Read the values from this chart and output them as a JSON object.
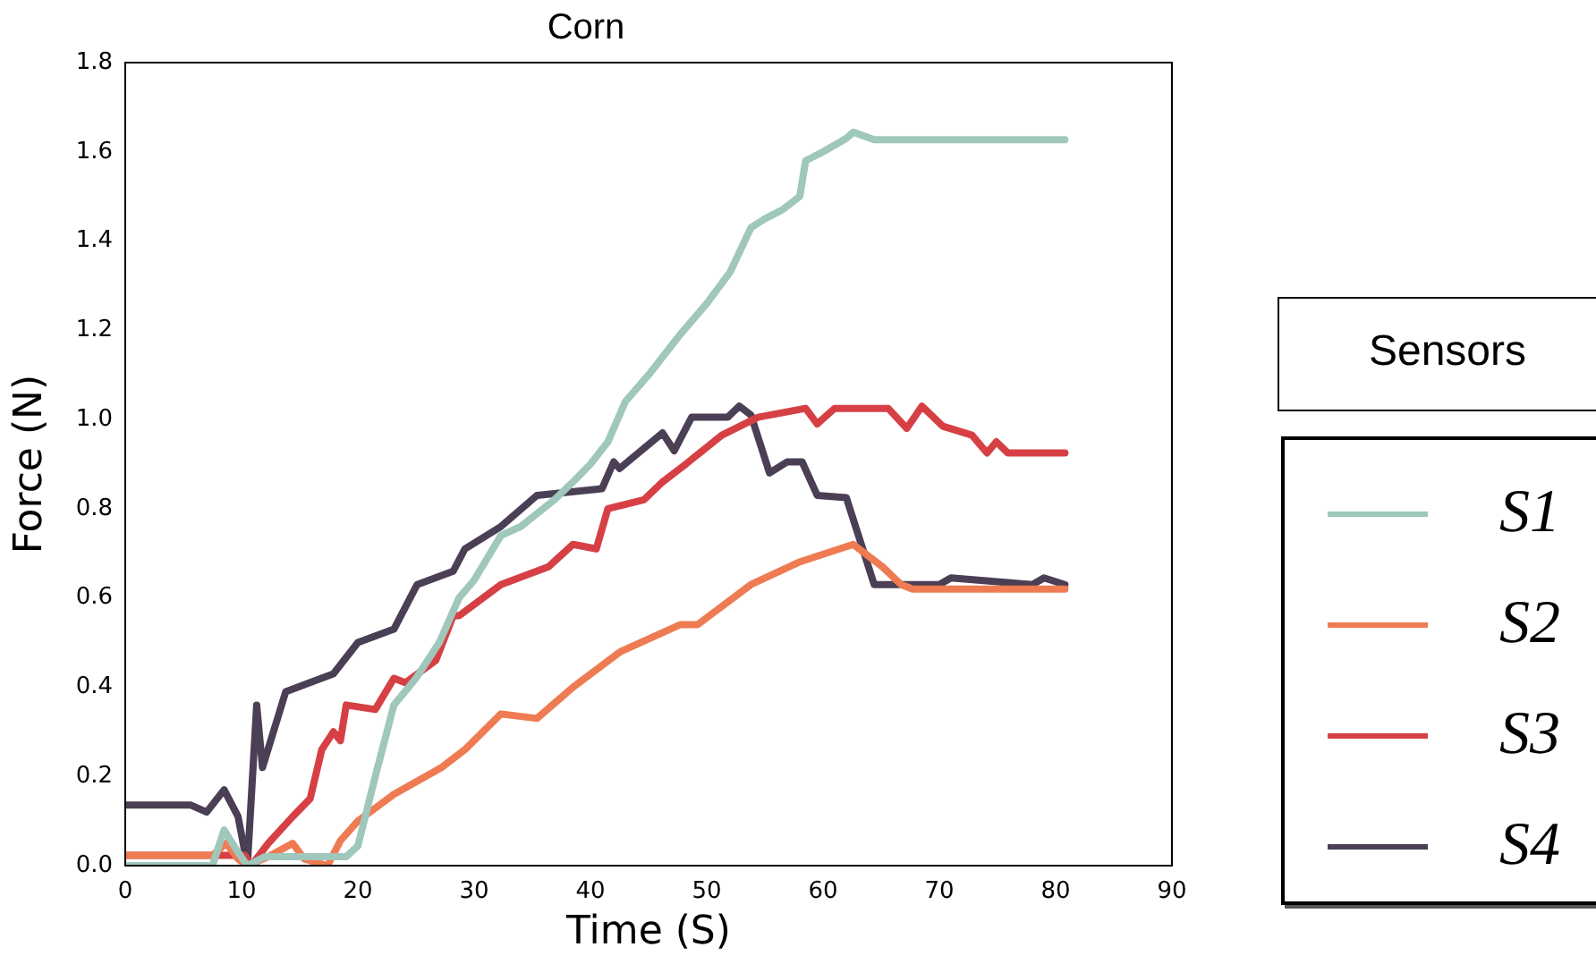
{
  "chart_data": {
    "type": "line",
    "title": "Corn",
    "xlabel": "Time (S)",
    "ylabel": "Force (N)",
    "legend_title": "Sensors",
    "legend": "right",
    "grid": false,
    "marker": "none",
    "line_style": "solid",
    "xlim": [
      0,
      90
    ],
    "xticks": [
      0,
      10,
      20,
      30,
      40,
      50,
      60,
      70,
      80,
      90
    ],
    "ylim": [
      0,
      1.8
    ],
    "yticks": [
      {
        "value": 0,
        "label": "0.0"
      },
      {
        "value": 0.2,
        "label": "0.2"
      },
      {
        "value": 0.4,
        "label": "0.4"
      },
      {
        "value": 0.6,
        "label": "0.6"
      },
      {
        "value": 0.8,
        "label": "0.8"
      },
      {
        "value": 1,
        "label": "1.0"
      },
      {
        "value": 1.2,
        "label": "1.2"
      },
      {
        "value": 1.4,
        "label": "1.4"
      },
      {
        "value": 1.6,
        "label": "1.6"
      },
      {
        "value": 1.8,
        "label": "1.8"
      }
    ],
    "series": [
      {
        "name": "S1",
        "color": "#9fc7bb",
        "x": [
          0,
          7.5,
          8.5,
          9.7,
          10.5,
          12,
          19,
          20,
          21.5,
          23.1,
          25,
          27,
          28.7,
          30,
          32.3,
          34,
          36.9,
          38.5,
          40,
          41.5,
          43,
          45,
          46.2,
          47.7,
          50,
          52,
          53.8,
          55,
          56.5,
          58,
          58.5,
          60,
          62,
          62.6,
          64.4,
          80.8
        ],
        "values": [
          0,
          0,
          0.08,
          0.03,
          0,
          0.02,
          0.02,
          0.044,
          0.2,
          0.36,
          0.42,
          0.5,
          0.6,
          0.64,
          0.74,
          0.76,
          0.82,
          0.86,
          0.9,
          0.95,
          1.04,
          1.1,
          1.14,
          1.19,
          1.26,
          1.33,
          1.43,
          1.45,
          1.47,
          1.5,
          1.58,
          1.6,
          1.63,
          1.644,
          1.627,
          1.627
        ]
      },
      {
        "name": "S2",
        "color": "#ef7b52",
        "x": [
          0,
          7.5,
          8.7,
          9.7,
          10.5,
          12.3,
          14.4,
          15.4,
          17.4,
          18.5,
          20,
          23.1,
          27.2,
          29.2,
          32.3,
          35.4,
          38.5,
          42.6,
          47.7,
          49.2,
          53.8,
          57.9,
          62.6,
          65.1,
          66.7,
          67.7,
          80.8
        ],
        "values": [
          0.023,
          0.023,
          0.05,
          0.015,
          0,
          0.02,
          0.05,
          0.015,
          0,
          0.056,
          0.1,
          0.16,
          0.22,
          0.26,
          0.34,
          0.33,
          0.4,
          0.48,
          0.54,
          0.54,
          0.63,
          0.68,
          0.72,
          0.67,
          0.63,
          0.62,
          0.62
        ]
      },
      {
        "name": "S3",
        "color": "#d64045",
        "x": [
          0,
          10.3,
          10.8,
          11.3,
          12.3,
          14.4,
          15.9,
          16.9,
          17.9,
          18.5,
          19,
          21.5,
          23.1,
          24.1,
          26.7,
          28.2,
          28.7,
          32.3,
          36.4,
          38.5,
          40.5,
          41.5,
          44.6,
          46.2,
          48.2,
          51.3,
          54.4,
          58.5,
          59.5,
          61,
          65.6,
          67.2,
          68.5,
          70.3,
          72.8,
          74.1,
          74.9,
          75.9,
          80.8
        ],
        "values": [
          0.023,
          0.023,
          0,
          0.016,
          0.05,
          0.11,
          0.15,
          0.26,
          0.3,
          0.28,
          0.36,
          0.35,
          0.42,
          0.41,
          0.46,
          0.56,
          0.56,
          0.63,
          0.67,
          0.72,
          0.71,
          0.8,
          0.82,
          0.86,
          0.9,
          0.965,
          1.005,
          1.025,
          0.99,
          1.025,
          1.025,
          0.98,
          1.03,
          0.985,
          0.965,
          0.925,
          0.95,
          0.925,
          0.925
        ]
      },
      {
        "name": "S4",
        "color": "#4a3f55",
        "x": [
          0,
          5.6,
          7,
          8.5,
          9.7,
          10.5,
          11.3,
          11.8,
          13.8,
          17.9,
          20,
          23.1,
          25.1,
          28.2,
          29.2,
          32.3,
          35.4,
          41,
          42,
          42.5,
          46.2,
          47.2,
          48.7,
          51.8,
          52.8,
          53.8,
          55.4,
          56.9,
          58.2,
          59.5,
          62,
          64.4,
          70,
          71,
          78,
          79,
          80.8
        ],
        "values": [
          0.136,
          0.136,
          0.12,
          0.17,
          0.11,
          0,
          0.36,
          0.22,
          0.39,
          0.43,
          0.5,
          0.53,
          0.63,
          0.66,
          0.71,
          0.76,
          0.83,
          0.845,
          0.905,
          0.89,
          0.97,
          0.93,
          1.005,
          1.005,
          1.03,
          1.01,
          0.88,
          0.905,
          0.905,
          0.83,
          0.825,
          0.63,
          0.63,
          0.645,
          0.63,
          0.645,
          0.63
        ]
      }
    ]
  }
}
